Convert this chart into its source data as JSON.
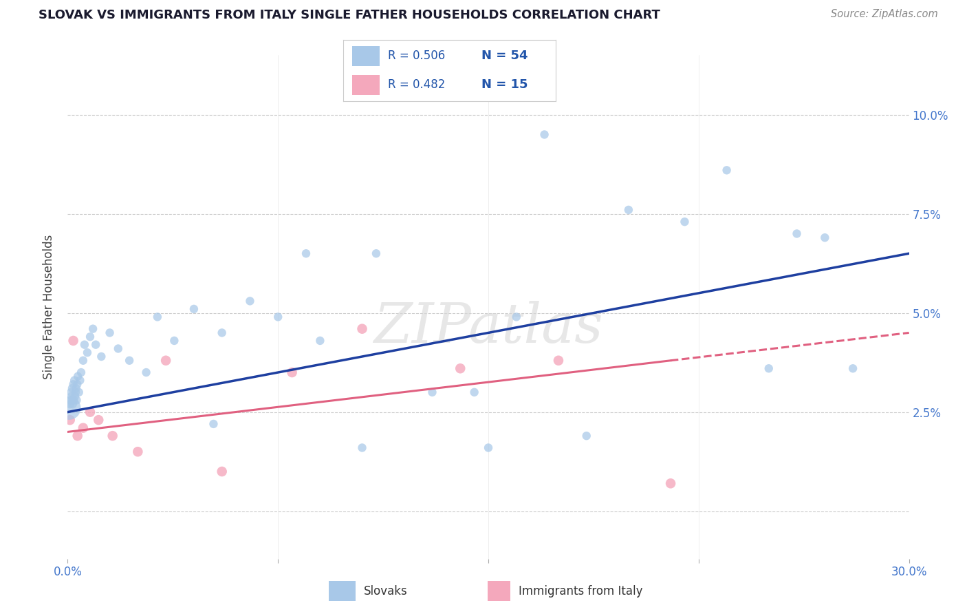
{
  "title": "SLOVAK VS IMMIGRANTS FROM ITALY SINGLE FATHER HOUSEHOLDS CORRELATION CHART",
  "source": "Source: ZipAtlas.com",
  "ylabel": "Single Father Households",
  "xlim": [
    0.0,
    30.0
  ],
  "ylim_bottom": -1.2,
  "ylim_top": 11.5,
  "ytick_vals": [
    0.0,
    2.5,
    5.0,
    7.5,
    10.0
  ],
  "ytick_right_labels": [
    "",
    "2.5%",
    "5.0%",
    "7.5%",
    "10.0%"
  ],
  "blue_scatter_color": "#A8C8E8",
  "pink_scatter_color": "#F4A8BC",
  "blue_line_color": "#1E3FA0",
  "pink_line_color": "#E06080",
  "grid_color": "#CCCCCC",
  "title_color": "#1A1A2E",
  "axis_tick_color": "#4477CC",
  "background_color": "#FFFFFF",
  "slovaks_x": [
    0.05,
    0.08,
    0.1,
    0.12,
    0.14,
    0.16,
    0.18,
    0.2,
    0.22,
    0.24,
    0.26,
    0.28,
    0.3,
    0.32,
    0.34,
    0.36,
    0.4,
    0.44,
    0.48,
    0.55,
    0.6,
    0.7,
    0.8,
    0.9,
    1.0,
    1.2,
    1.5,
    1.8,
    2.2,
    2.8,
    3.2,
    3.8,
    4.5,
    5.5,
    6.5,
    7.5,
    9.0,
    10.5,
    13.0,
    15.0,
    16.0,
    17.0,
    18.5,
    20.0,
    22.0,
    23.5,
    25.0,
    26.0,
    27.0,
    28.0,
    11.0,
    14.5,
    8.5,
    5.2
  ],
  "slovaks_y": [
    2.6,
    2.7,
    2.8,
    3.0,
    2.9,
    3.1,
    2.7,
    3.2,
    2.8,
    3.3,
    2.9,
    3.0,
    3.1,
    2.8,
    3.2,
    3.4,
    3.0,
    3.3,
    3.5,
    3.8,
    4.2,
    4.0,
    4.4,
    4.6,
    4.2,
    3.9,
    4.5,
    4.1,
    3.8,
    3.5,
    4.9,
    4.3,
    5.1,
    4.5,
    5.3,
    4.9,
    4.3,
    1.6,
    3.0,
    1.6,
    4.9,
    9.5,
    1.9,
    7.6,
    7.3,
    8.6,
    3.6,
    7.0,
    6.9,
    3.6,
    6.5,
    3.0,
    6.5,
    2.2
  ],
  "slovaks_size_big": 600,
  "slovaks_size_small": 80,
  "slovaks_big_indices": [
    0
  ],
  "italy_x": [
    0.08,
    0.2,
    0.35,
    0.55,
    0.8,
    1.1,
    1.6,
    2.5,
    3.5,
    5.5,
    8.0,
    10.5,
    14.0,
    17.5,
    21.5
  ],
  "italy_y": [
    2.3,
    4.3,
    1.9,
    2.1,
    2.5,
    2.3,
    1.9,
    1.5,
    3.8,
    1.0,
    3.5,
    4.6,
    3.6,
    3.8,
    0.7
  ],
  "blue_line_x0": 0.0,
  "blue_line_x1": 30.0,
  "blue_line_y0": 2.5,
  "blue_line_y1": 6.5,
  "pink_line_x0": 0.0,
  "pink_line_x1": 21.5,
  "pink_dash_x0": 21.5,
  "pink_dash_x1": 30.0,
  "pink_line_y0": 2.0,
  "pink_line_y1": 3.8,
  "pink_dash_y1": 4.5
}
